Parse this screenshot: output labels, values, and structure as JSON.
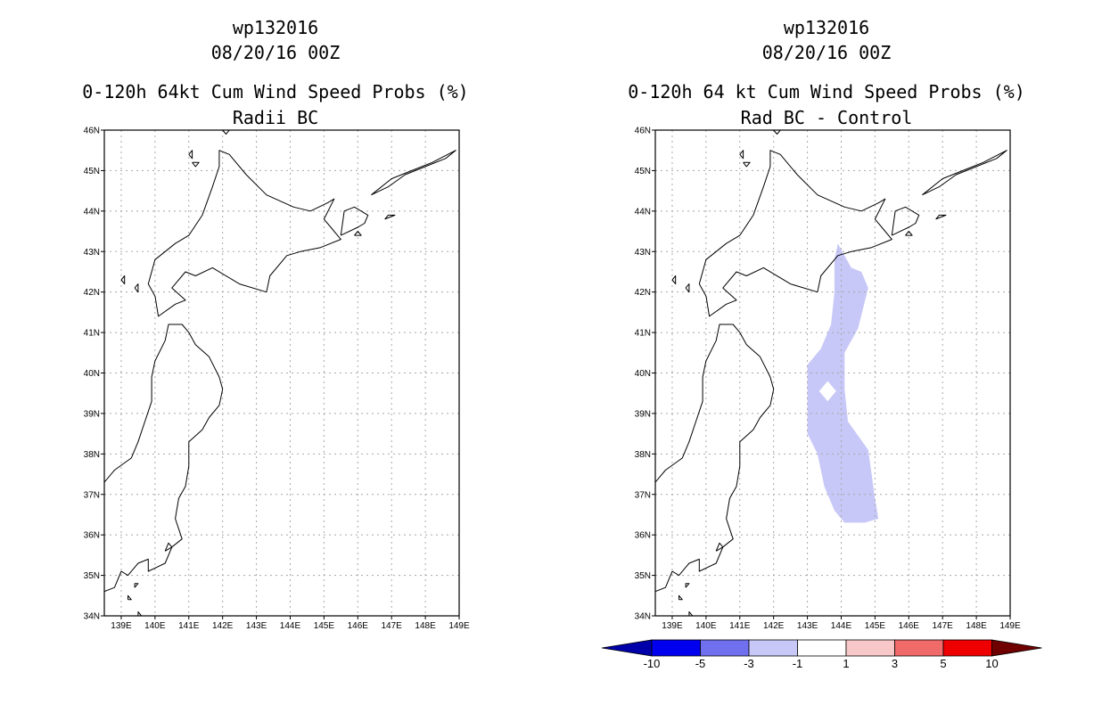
{
  "colors": {
    "neg10": "#0000aa",
    "neg5": "#0000ee",
    "neg3": "#7070ee",
    "neg1": "#c8c8f8",
    "zero": "#ffffff",
    "pos1": "#f8c8c8",
    "pos3": "#f06a6a",
    "pos5": "#ee0000",
    "pos10": "#700000"
  },
  "chart_data": [
    {
      "type": "heatmap",
      "storm_id": "wp132016",
      "date": "08/20/16 00Z",
      "title": "0-120h 64kt Cum Wind Speed Probs (%)",
      "subtitle": "Radii BC",
      "xlim": [
        138.5,
        149
      ],
      "ylim": [
        34,
        46
      ],
      "x_ticks": [
        "139E",
        "140E",
        "141E",
        "142E",
        "143E",
        "144E",
        "145E",
        "146E",
        "147E",
        "148E",
        "149E"
      ],
      "y_ticks": [
        "34N",
        "35N",
        "36N",
        "37N",
        "38N",
        "39N",
        "40N",
        "41N",
        "42N",
        "43N",
        "44N",
        "45N",
        "46N"
      ],
      "grid": true,
      "shaded_regions": []
    },
    {
      "type": "heatmap",
      "storm_id": "wp132016",
      "date": "08/20/16 00Z",
      "title": "0-120h 64 kt Cum Wind Speed Probs (%)",
      "subtitle": "Rad BC - Control",
      "xlim": [
        138.5,
        149
      ],
      "ylim": [
        34,
        46
      ],
      "x_ticks": [
        "139E",
        "140E",
        "141E",
        "142E",
        "143E",
        "144E",
        "145E",
        "146E",
        "147E",
        "148E",
        "149E"
      ],
      "y_ticks": [
        "34N",
        "35N",
        "36N",
        "37N",
        "38N",
        "39N",
        "40N",
        "41N",
        "42N",
        "43N",
        "44N",
        "45N",
        "46N"
      ],
      "grid": true,
      "shaded_regions": [
        {
          "range": "-3 to -1",
          "outer": [
            [
              143.9,
              43.2
            ],
            [
              144.3,
              42.6
            ],
            [
              144.6,
              42.5
            ],
            [
              144.8,
              42.1
            ],
            [
              144.5,
              41.1
            ],
            [
              144.1,
              40.5
            ],
            [
              144.1,
              39.6
            ],
            [
              144.2,
              38.8
            ],
            [
              144.8,
              38.1
            ],
            [
              145.0,
              36.9
            ],
            [
              145.1,
              36.4
            ],
            [
              144.7,
              36.3
            ],
            [
              144.1,
              36.3
            ],
            [
              143.8,
              36.6
            ],
            [
              143.5,
              37.2
            ],
            [
              143.3,
              38.0
            ],
            [
              143.0,
              38.5
            ],
            [
              143.0,
              39.5
            ],
            [
              143.0,
              40.2
            ],
            [
              143.4,
              40.6
            ],
            [
              143.7,
              41.2
            ],
            [
              143.8,
              42.0
            ],
            [
              143.8,
              42.8
            ]
          ],
          "hole": [
            [
              143.6,
              39.8
            ],
            [
              143.85,
              39.55
            ],
            [
              143.6,
              39.3
            ],
            [
              143.35,
              39.55
            ]
          ]
        }
      ]
    }
  ],
  "colorbar": {
    "labels": [
      "-10",
      "-5",
      "-3",
      "-1",
      "1",
      "3",
      "5",
      "10"
    ]
  }
}
